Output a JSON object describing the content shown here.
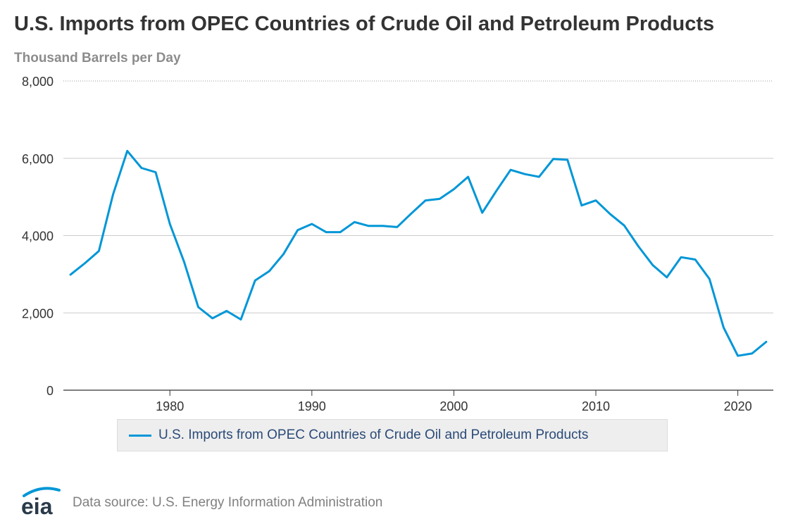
{
  "title": "U.S. Imports from OPEC Countries of Crude Oil and Petroleum Products",
  "units": "Thousand Barrels per Day",
  "source": "Data source: U.S. Energy Information Administration",
  "logo_text": "eia",
  "colors": {
    "line": "#0096d7",
    "grid": "#cccccc",
    "axis": "#333333"
  },
  "chart_data": {
    "type": "line",
    "title": "U.S. Imports from OPEC Countries of Crude Oil and Petroleum Products",
    "ylabel": "Thousand Barrels per Day",
    "xlabel": "",
    "xlim": [
      1972.5,
      2022.5
    ],
    "ylim": [
      0,
      8000
    ],
    "x_ticks": [
      1980,
      1990,
      2000,
      2010,
      2020
    ],
    "y_ticks": [
      0,
      2000,
      4000,
      6000,
      8000
    ],
    "y_tick_labels": [
      "0",
      "2,000",
      "4,000",
      "6,000",
      "8,000"
    ],
    "grid": true,
    "legend": "bottom-center",
    "series": [
      {
        "name": "U.S. Imports from OPEC Countries of Crude Oil and Petroleum Products",
        "x": [
          1973,
          1974,
          1975,
          1976,
          1977,
          1978,
          1979,
          1980,
          1981,
          1982,
          1983,
          1984,
          1985,
          1986,
          1987,
          1988,
          1989,
          1990,
          1991,
          1992,
          1993,
          1994,
          1995,
          1996,
          1997,
          1998,
          1999,
          2000,
          2001,
          2002,
          2003,
          2004,
          2005,
          2006,
          2007,
          2008,
          2009,
          2010,
          2011,
          2012,
          2013,
          2014,
          2015,
          2016,
          2017,
          2018,
          2019,
          2020,
          2021,
          2022
        ],
        "values": [
          2990,
          3280,
          3600,
          5070,
          6190,
          5750,
          5640,
          4300,
          3320,
          2150,
          1860,
          2050,
          1830,
          2840,
          3080,
          3520,
          4140,
          4300,
          4090,
          4090,
          4350,
          4250,
          4250,
          4220,
          4570,
          4910,
          4950,
          5200,
          5520,
          4590,
          5160,
          5700,
          5590,
          5520,
          5980,
          5960,
          4780,
          4910,
          4560,
          4260,
          3720,
          3240,
          2920,
          3440,
          3380,
          2880,
          1620,
          890,
          950,
          1250
        ]
      }
    ]
  }
}
